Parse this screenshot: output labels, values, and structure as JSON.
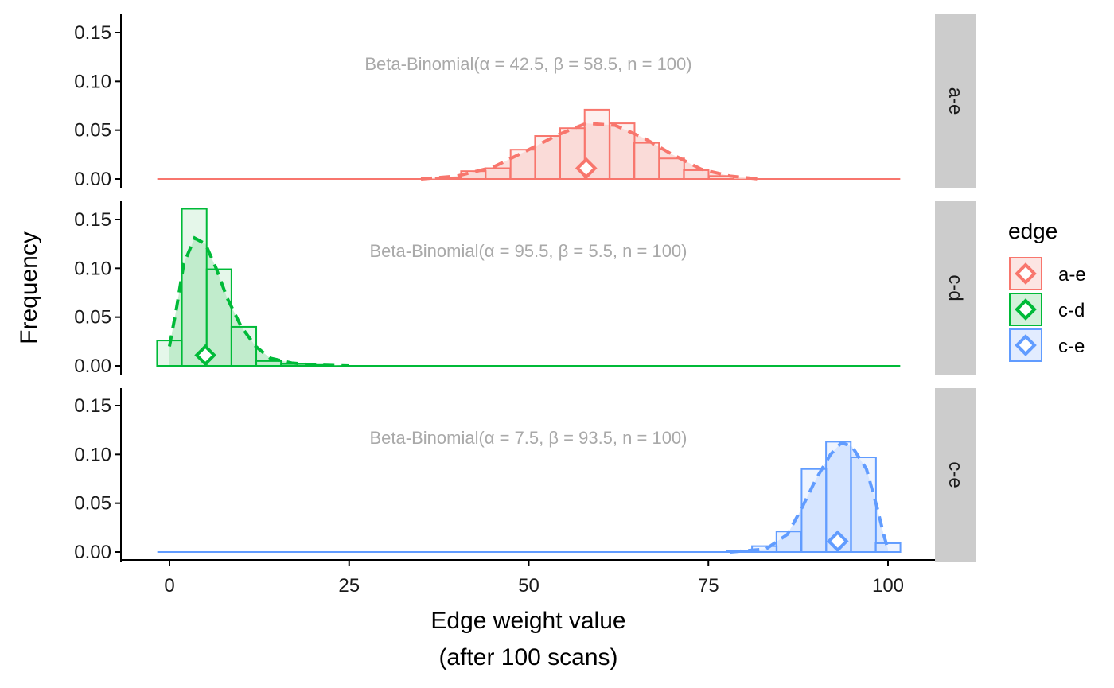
{
  "chart_data": {
    "type": "bar",
    "xlabel_lines": [
      "Edge weight value",
      "(after 100 scans)"
    ],
    "ylabel": "Frequency",
    "xlim": [
      -5,
      106
    ],
    "ylim": [
      0,
      0.17
    ],
    "x_ticks": [
      0,
      25,
      50,
      75,
      100
    ],
    "y_ticks": [
      0.0,
      0.05,
      0.1,
      0.15
    ],
    "grid": false,
    "legend": {
      "title": "edge",
      "placement": "right",
      "items": [
        "a-e",
        "c-d",
        "c-e"
      ]
    },
    "bin_width": 3.45,
    "facets": [
      {
        "label": "a-e",
        "color": "#F8766D",
        "fill": "#FAD4D0",
        "annotation": "Beta-Binomial(α = 42.5, β = 58.5, n = 100)",
        "bins": [
          {
            "center": 38.8,
            "freq": 0.001
          },
          {
            "center": 42.3,
            "freq": 0.008
          },
          {
            "center": 45.7,
            "freq": 0.011
          },
          {
            "center": 49.2,
            "freq": 0.03
          },
          {
            "center": 52.6,
            "freq": 0.044
          },
          {
            "center": 56.1,
            "freq": 0.052
          },
          {
            "center": 59.5,
            "freq": 0.071
          },
          {
            "center": 63.0,
            "freq": 0.057
          },
          {
            "center": 66.4,
            "freq": 0.037
          },
          {
            "center": 69.9,
            "freq": 0.021
          },
          {
            "center": 73.3,
            "freq": 0.009
          },
          {
            "center": 76.8,
            "freq": 0.003
          }
        ],
        "density": [
          [
            35,
            0.0
          ],
          [
            40,
            0.003
          ],
          [
            45,
            0.012
          ],
          [
            50,
            0.03
          ],
          [
            54,
            0.045
          ],
          [
            58,
            0.057
          ],
          [
            62,
            0.055
          ],
          [
            66,
            0.042
          ],
          [
            70,
            0.025
          ],
          [
            74,
            0.01
          ],
          [
            78,
            0.003
          ],
          [
            82,
            0.0
          ]
        ],
        "median": 58,
        "marker_y": 0.011
      },
      {
        "label": "c-d",
        "color": "#00BA38",
        "fill": "#B5E8C3",
        "annotation": "Beta-Binomial(α = 95.5, β = 5.5, n = 100)",
        "bins": [
          {
            "center": 0.0,
            "freq": 0.026
          },
          {
            "center": 3.45,
            "freq": 0.161
          },
          {
            "center": 6.9,
            "freq": 0.099
          },
          {
            "center": 10.35,
            "freq": 0.04
          },
          {
            "center": 13.8,
            "freq": 0.005
          },
          {
            "center": 17.25,
            "freq": 0.002
          },
          {
            "center": 20.7,
            "freq": 0.001
          }
        ],
        "density": [
          [
            0,
            0.02
          ],
          [
            1,
            0.06
          ],
          [
            2,
            0.105
          ],
          [
            3.5,
            0.131
          ],
          [
            5,
            0.125
          ],
          [
            6.5,
            0.1
          ],
          [
            8,
            0.07
          ],
          [
            10,
            0.04
          ],
          [
            12,
            0.02
          ],
          [
            14,
            0.008
          ],
          [
            17,
            0.003
          ],
          [
            20,
            0.001
          ],
          [
            25,
            0.0
          ]
        ],
        "median": 5,
        "marker_y": 0.011
      },
      {
        "label": "c-e",
        "color": "#619CFF",
        "fill": "#CFE0FF",
        "annotation": "Beta-Binomial(α = 7.5, β = 93.5, n = 100)",
        "bins": [
          {
            "center": 79.3,
            "freq": 0.001
          },
          {
            "center": 82.8,
            "freq": 0.006
          },
          {
            "center": 86.2,
            "freq": 0.021
          },
          {
            "center": 89.7,
            "freq": 0.085
          },
          {
            "center": 93.1,
            "freq": 0.113
          },
          {
            "center": 96.6,
            "freq": 0.097
          },
          {
            "center": 100.0,
            "freq": 0.009
          }
        ],
        "density": [
          [
            78,
            0.0
          ],
          [
            83,
            0.003
          ],
          [
            86,
            0.018
          ],
          [
            88,
            0.045
          ],
          [
            90,
            0.075
          ],
          [
            92,
            0.1
          ],
          [
            93.5,
            0.112
          ],
          [
            95,
            0.108
          ],
          [
            97,
            0.085
          ],
          [
            98.5,
            0.045
          ],
          [
            99.5,
            0.015
          ],
          [
            100,
            0.003
          ]
        ],
        "median": 93,
        "marker_y": 0.011
      }
    ]
  }
}
